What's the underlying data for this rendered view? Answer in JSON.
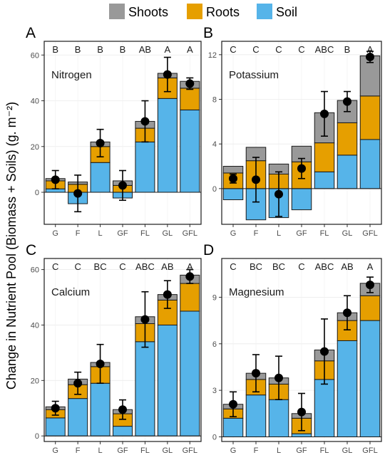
{
  "legend": {
    "items": [
      {
        "label": "Shoots",
        "color": "#999999"
      },
      {
        "label": "Roots",
        "color": "#E69F00"
      },
      {
        "label": "Soil",
        "color": "#56B4E9"
      }
    ]
  },
  "y_axis_label": "Change in Nutrient Pool (Biomass + Soils) (g. m⁻²)",
  "chart_data": [
    {
      "type": "bar",
      "stacked": true,
      "panel": "A",
      "title": "Nitrogen",
      "categories": [
        "G",
        "F",
        "L",
        "GF",
        "FL",
        "GL",
        "GFL"
      ],
      "letters": [
        "B",
        "B",
        "B",
        "B",
        "AB",
        "A",
        "A"
      ],
      "ylim": [
        -14,
        66
      ],
      "yticks": [
        0,
        20,
        40,
        60
      ],
      "series": [
        {
          "name": "Soil",
          "values": [
            1.5,
            -5,
            13,
            -2.5,
            22,
            41,
            36
          ]
        },
        {
          "name": "Roots",
          "values": [
            3.5,
            3.5,
            7,
            3,
            6,
            9,
            9.5
          ]
        },
        {
          "name": "Shoots",
          "values": [
            1,
            1,
            2,
            2,
            3,
            2,
            3
          ]
        }
      ],
      "means": [
        5.5,
        -0.5,
        21.5,
        3,
        31,
        51.5,
        47.5
      ],
      "errors": [
        4,
        8,
        6,
        6.5,
        9,
        7.5,
        2.5
      ]
    },
    {
      "type": "bar",
      "stacked": true,
      "panel": "B",
      "title": "Potassium",
      "categories": [
        "G",
        "F",
        "L",
        "GF",
        "FL",
        "GL",
        "GFL"
      ],
      "letters": [
        "C",
        "C",
        "C",
        "C",
        "ABC",
        "B",
        "A"
      ],
      "ylim": [
        -3.2,
        13.2
      ],
      "yticks": [
        0,
        4,
        8,
        12
      ],
      "series": [
        {
          "name": "Soil",
          "values": [
            -1,
            -2.8,
            -2.6,
            -1.9,
            1.5,
            3,
            4.4
          ]
        },
        {
          "name": "Roots",
          "values": [
            1.4,
            2.5,
            1.3,
            2.4,
            2.6,
            2.9,
            3.9
          ]
        },
        {
          "name": "Shoots",
          "values": [
            0.6,
            1.2,
            0.9,
            1.4,
            2.7,
            2,
            3.6
          ]
        }
      ],
      "means": [
        0.9,
        0.8,
        -0.5,
        1.8,
        6.7,
        7.8,
        11.8
      ],
      "errors": [
        0.4,
        2,
        2,
        0.9,
        2,
        0.9,
        0.5
      ]
    },
    {
      "type": "bar",
      "stacked": true,
      "panel": "C",
      "title": "Calcium",
      "categories": [
        "G",
        "F",
        "L",
        "GF",
        "FL",
        "GL",
        "GFL"
      ],
      "letters": [
        "C",
        "C",
        "BC",
        "C",
        "ABC",
        "AB",
        "A"
      ],
      "ylim": [
        -2,
        64
      ],
      "yticks": [
        0,
        20,
        40,
        60
      ],
      "series": [
        {
          "name": "Soil",
          "values": [
            6.5,
            13.5,
            19,
            3.5,
            34,
            40,
            45
          ]
        },
        {
          "name": "Roots",
          "values": [
            3,
            5,
            6,
            4.5,
            6.5,
            9,
            10
          ]
        },
        {
          "name": "Shoots",
          "values": [
            1,
            2,
            1.5,
            1.5,
            2.5,
            2,
            3
          ]
        }
      ],
      "means": [
        10,
        19,
        26,
        9.5,
        42,
        51,
        57.5
      ],
      "errors": [
        2.5,
        4,
        7,
        3.5,
        10,
        5,
        2.5
      ]
    },
    {
      "type": "bar",
      "stacked": true,
      "panel": "D",
      "title": "Magnesium",
      "categories": [
        "G",
        "F",
        "L",
        "GF",
        "FL",
        "GL",
        "GFL"
      ],
      "letters": [
        "C",
        "BC",
        "BC",
        "C",
        "ABC",
        "AB",
        "A"
      ],
      "ylim": [
        -0.3,
        11.5
      ],
      "yticks": [
        0,
        3,
        6,
        9
      ],
      "series": [
        {
          "name": "Soil",
          "values": [
            1.2,
            2.7,
            2.4,
            0.2,
            3.7,
            6.2,
            7.5
          ]
        },
        {
          "name": "Roots",
          "values": [
            0.6,
            1,
            1,
            1,
            1.2,
            1.3,
            1.6
          ]
        },
        {
          "name": "Shoots",
          "values": [
            0.3,
            0.4,
            0.4,
            0.3,
            0.7,
            0.5,
            0.8
          ]
        }
      ],
      "means": [
        2.1,
        4.1,
        3.8,
        1.6,
        5.5,
        8,
        9.8
      ],
      "errors": [
        0.8,
        1.2,
        1.4,
        1.2,
        2.1,
        1.1,
        0.5
      ]
    }
  ]
}
